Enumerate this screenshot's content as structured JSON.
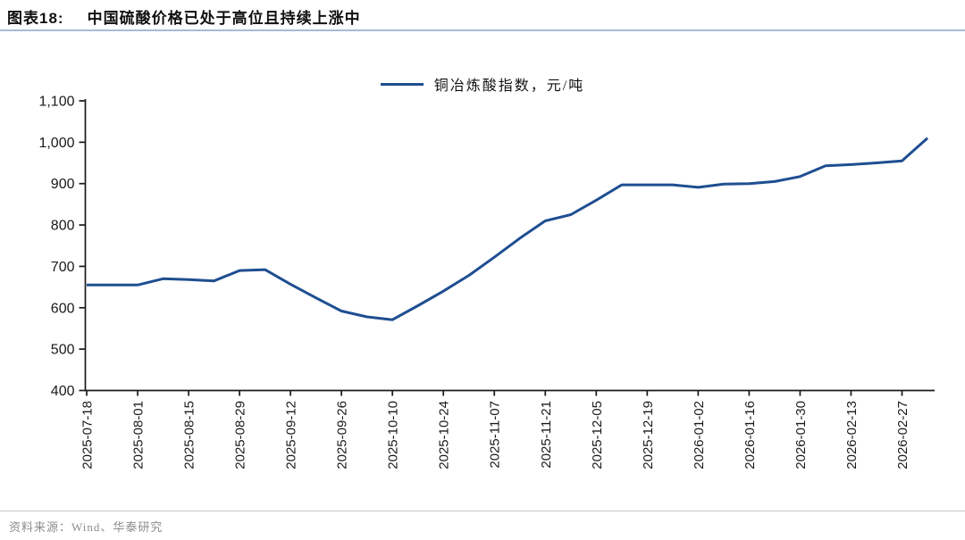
{
  "header": {
    "label": "图表18:",
    "title": "中国硫酸价格已处于高位且持续上涨中"
  },
  "chart_data": {
    "type": "line",
    "title": "图表18: 中国硫酸价格已处于高位且持续上涨中",
    "legend": "铜冶炼酸指数，元/吨",
    "legend_position": "top-center",
    "grid": false,
    "ylim": [
      400,
      1100
    ],
    "y_ticks": [
      400,
      500,
      600,
      700,
      800,
      900,
      1000,
      1100
    ],
    "y_tick_labels": [
      "400",
      "500",
      "600",
      "700",
      "800",
      "900",
      "1,000",
      "1,100"
    ],
    "x": [
      "2025-07-18",
      "2025-07-25",
      "2025-08-01",
      "2025-08-08",
      "2025-08-15",
      "2025-08-22",
      "2025-08-29",
      "2025-09-05",
      "2025-09-12",
      "2025-09-19",
      "2025-09-26",
      "2025-10-03",
      "2025-10-10",
      "2025-10-17",
      "2025-10-24",
      "2025-10-31",
      "2025-11-07",
      "2025-11-14",
      "2025-11-21",
      "2025-11-28",
      "2025-12-05",
      "2025-12-12",
      "2025-12-19",
      "2025-12-26",
      "2026-01-02",
      "2026-01-09",
      "2026-01-16",
      "2026-01-23",
      "2026-01-30",
      "2026-02-06",
      "2026-02-13",
      "2026-02-20",
      "2026-02-27",
      "2026-03-06"
    ],
    "x_tick_labels": [
      "2025-07-18",
      "2025-08-01",
      "2025-08-15",
      "2025-08-29",
      "2025-09-12",
      "2025-09-26",
      "2025-10-10",
      "2025-10-24",
      "2025-11-07",
      "2025-11-21",
      "2025-12-05",
      "2025-12-19",
      "2026-01-02",
      "2026-01-16",
      "2026-01-30",
      "2026-02-13",
      "2026-02-27"
    ],
    "series": [
      {
        "name": "铜冶炼酸指数，元/吨",
        "color": "#1F4E91",
        "values": [
          655,
          655,
          655,
          670,
          668,
          665,
          690,
          692,
          657,
          624,
          592,
          578,
          571,
          605,
          640,
          678,
          722,
          768,
          810,
          825,
          860,
          897,
          897,
          897,
          891,
          899,
          900,
          905,
          917,
          943,
          946,
          950,
          955,
          1010
        ]
      }
    ]
  },
  "footer": {
    "source": "资料来源：Wind、华泰研究"
  },
  "colors": {
    "accent": "#1F4E91",
    "title_underline": "#A6BBD7",
    "axis": "#1A1A1A",
    "footer_text": "#8C8C8C",
    "footer_rule": "#C9C9C9"
  }
}
